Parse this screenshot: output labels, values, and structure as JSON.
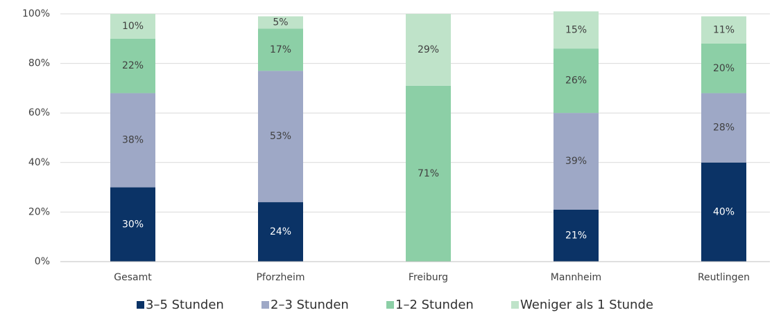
{
  "chart_data": {
    "type": "stacked_bar",
    "categories": [
      "Gesamt",
      "Pforzheim",
      "Freiburg",
      "Mannheim",
      "Reutlingen"
    ],
    "series": [
      {
        "name": "3–5 Stunden",
        "color": "#0b3366",
        "values": [
          30,
          24,
          null,
          21,
          40
        ],
        "value_labels": [
          "30%",
          "24%",
          null,
          "21%",
          "40%"
        ]
      },
      {
        "name": "2–3 Stunden",
        "color": "#9ea8c6",
        "values": [
          38,
          53,
          null,
          39,
          28
        ],
        "value_labels": [
          "38%",
          "53%",
          null,
          "39%",
          "28%"
        ]
      },
      {
        "name": "1–2 Stunden",
        "color": "#8ccfa6",
        "values": [
          22,
          17,
          71,
          26,
          20
        ],
        "value_labels": [
          "22%",
          "17%",
          "71%",
          "26%",
          "20%"
        ]
      },
      {
        "name": "Weniger als 1 Stunde",
        "color": "#bfe3c9",
        "values": [
          10,
          5,
          29,
          15,
          11
        ],
        "value_labels": [
          "10%",
          "5%",
          "29%",
          "15%",
          "11%"
        ]
      }
    ],
    "ylim": [
      0,
      100
    ],
    "yticks": [
      {
        "value": 0,
        "label": "0%"
      },
      {
        "value": 20,
        "label": "20%"
      },
      {
        "value": 40,
        "label": "40%"
      },
      {
        "value": 60,
        "label": "60%"
      },
      {
        "value": 80,
        "label": "80%"
      },
      {
        "value": 100,
        "label": "100%"
      }
    ],
    "grid": true,
    "legend": "bottom"
  }
}
